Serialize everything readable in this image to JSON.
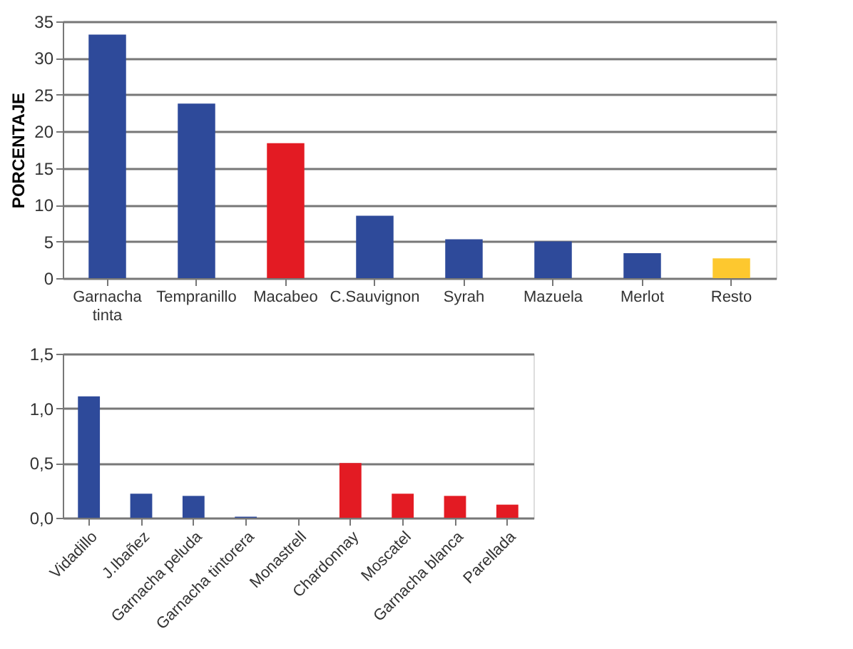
{
  "chart_data": [
    {
      "type": "bar",
      "ylabel": "PORCENTAJE",
      "categories": [
        "Garnacha tinta",
        "Tempranillo",
        "Macabeo",
        "C.Sauvignon",
        "Syrah",
        "Mazuela",
        "Merlot",
        "Resto"
      ],
      "values": [
        33.2,
        23.8,
        18.4,
        8.5,
        5.3,
        5.0,
        3.4,
        2.7
      ],
      "colors": [
        "#2e4a9a",
        "#2e4a9a",
        "#e31b23",
        "#2e4a9a",
        "#2e4a9a",
        "#2e4a9a",
        "#2e4a9a",
        "#fdc82f"
      ],
      "ylim": [
        0,
        35
      ],
      "yticks": [
        0,
        5,
        10,
        15,
        20,
        25,
        30,
        35
      ],
      "grid": "y"
    },
    {
      "type": "bar",
      "categories": [
        "Vidadillo",
        "J.Ibañez",
        "Garnacha peluda",
        "Garnacha tintorera",
        "Monastrell",
        "Chardonnay",
        "Moscatel",
        "Garnacha blanca",
        "Parellada"
      ],
      "values": [
        1.11,
        0.22,
        0.2,
        0.01,
        0,
        0.5,
        0.22,
        0.2,
        0.12
      ],
      "colors": [
        "#2e4a9a",
        "#2e4a9a",
        "#2e4a9a",
        "#2e4a9a",
        "#2e4a9a",
        "#e31b23",
        "#e31b23",
        "#e31b23",
        "#e31b23"
      ],
      "ylim": [
        0,
        1.5
      ],
      "yticks": [
        {
          "value": 0,
          "label": "0,0"
        },
        {
          "value": 0.5,
          "label": "0,5"
        },
        {
          "value": 1.0,
          "label": "1,0"
        },
        {
          "value": 1.5,
          "label": "1,5"
        }
      ],
      "grid": "y"
    }
  ]
}
